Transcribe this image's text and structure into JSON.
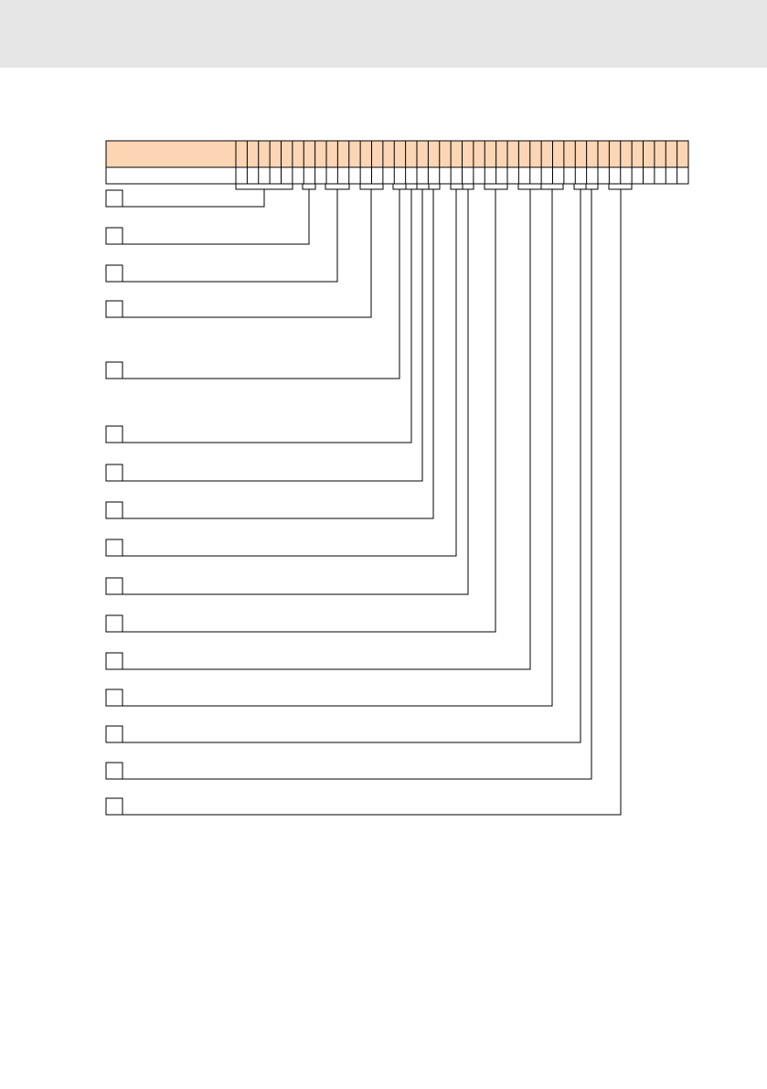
{
  "colors": {
    "header_band": "#e6e6e6",
    "code_header_row": "#fbd5b4",
    "lines": "#000000",
    "background": "#ffffff"
  },
  "type_code": {
    "position_count": 40,
    "header_row_fill": "code-header-orange",
    "value_row_fill": "white"
  },
  "legend": {
    "entry_count": 16,
    "entries": [
      {
        "key": "entry-1"
      },
      {
        "key": "entry-2"
      },
      {
        "key": "entry-3"
      },
      {
        "key": "entry-4"
      },
      {
        "key": "entry-5"
      },
      {
        "key": "entry-6"
      },
      {
        "key": "entry-7"
      },
      {
        "key": "entry-8"
      },
      {
        "key": "entry-9"
      },
      {
        "key": "entry-10"
      },
      {
        "key": "entry-11"
      },
      {
        "key": "entry-12"
      },
      {
        "key": "entry-13"
      },
      {
        "key": "entry-14"
      },
      {
        "key": "entry-15"
      },
      {
        "key": "entry-16"
      }
    ]
  }
}
